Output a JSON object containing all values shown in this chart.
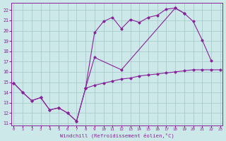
{
  "background_color": "#cde8e8",
  "grid_color": "#a8cccc",
  "line_color": "#882299",
  "xlim": [
    -0.3,
    23.3
  ],
  "ylim": [
    10.8,
    22.7
  ],
  "xlabel": "Windchill (Refroidissement éolien,°C)",
  "yticks": [
    11,
    12,
    13,
    14,
    15,
    16,
    17,
    18,
    19,
    20,
    21,
    22
  ],
  "xticks": [
    0,
    1,
    2,
    3,
    4,
    5,
    6,
    7,
    8,
    9,
    10,
    11,
    12,
    13,
    14,
    15,
    16,
    17,
    18,
    19,
    20,
    21,
    22,
    23
  ],
  "series1_x": [
    0,
    1,
    2,
    3,
    4,
    5,
    6,
    7,
    8,
    9,
    10,
    11,
    12,
    13,
    14,
    15,
    16,
    17,
    18,
    19,
    20,
    21,
    22,
    23
  ],
  "series1_y": [
    14.9,
    14.0,
    13.2,
    13.5,
    12.3,
    12.5,
    12.0,
    11.2,
    14.4,
    14.7,
    14.9,
    15.1,
    15.3,
    15.4,
    15.6,
    15.7,
    15.8,
    15.9,
    16.0,
    16.1,
    16.2,
    16.2,
    16.2,
    16.2
  ],
  "series2_x": [
    0,
    1,
    2,
    3,
    4,
    5,
    6,
    7,
    8,
    9,
    10,
    11,
    12,
    13,
    14,
    15,
    16,
    17,
    18,
    19,
    20,
    21,
    22
  ],
  "series2_y": [
    14.9,
    14.0,
    13.2,
    13.5,
    12.3,
    12.5,
    12.0,
    11.2,
    14.4,
    19.8,
    20.9,
    21.3,
    20.2,
    21.1,
    20.8,
    21.3,
    21.5,
    22.1,
    22.2,
    21.7,
    20.9,
    19.1,
    17.1
  ],
  "series3_x": [
    8,
    9,
    12,
    18,
    19
  ],
  "series3_y": [
    14.4,
    17.4,
    16.2,
    22.2,
    21.7
  ]
}
